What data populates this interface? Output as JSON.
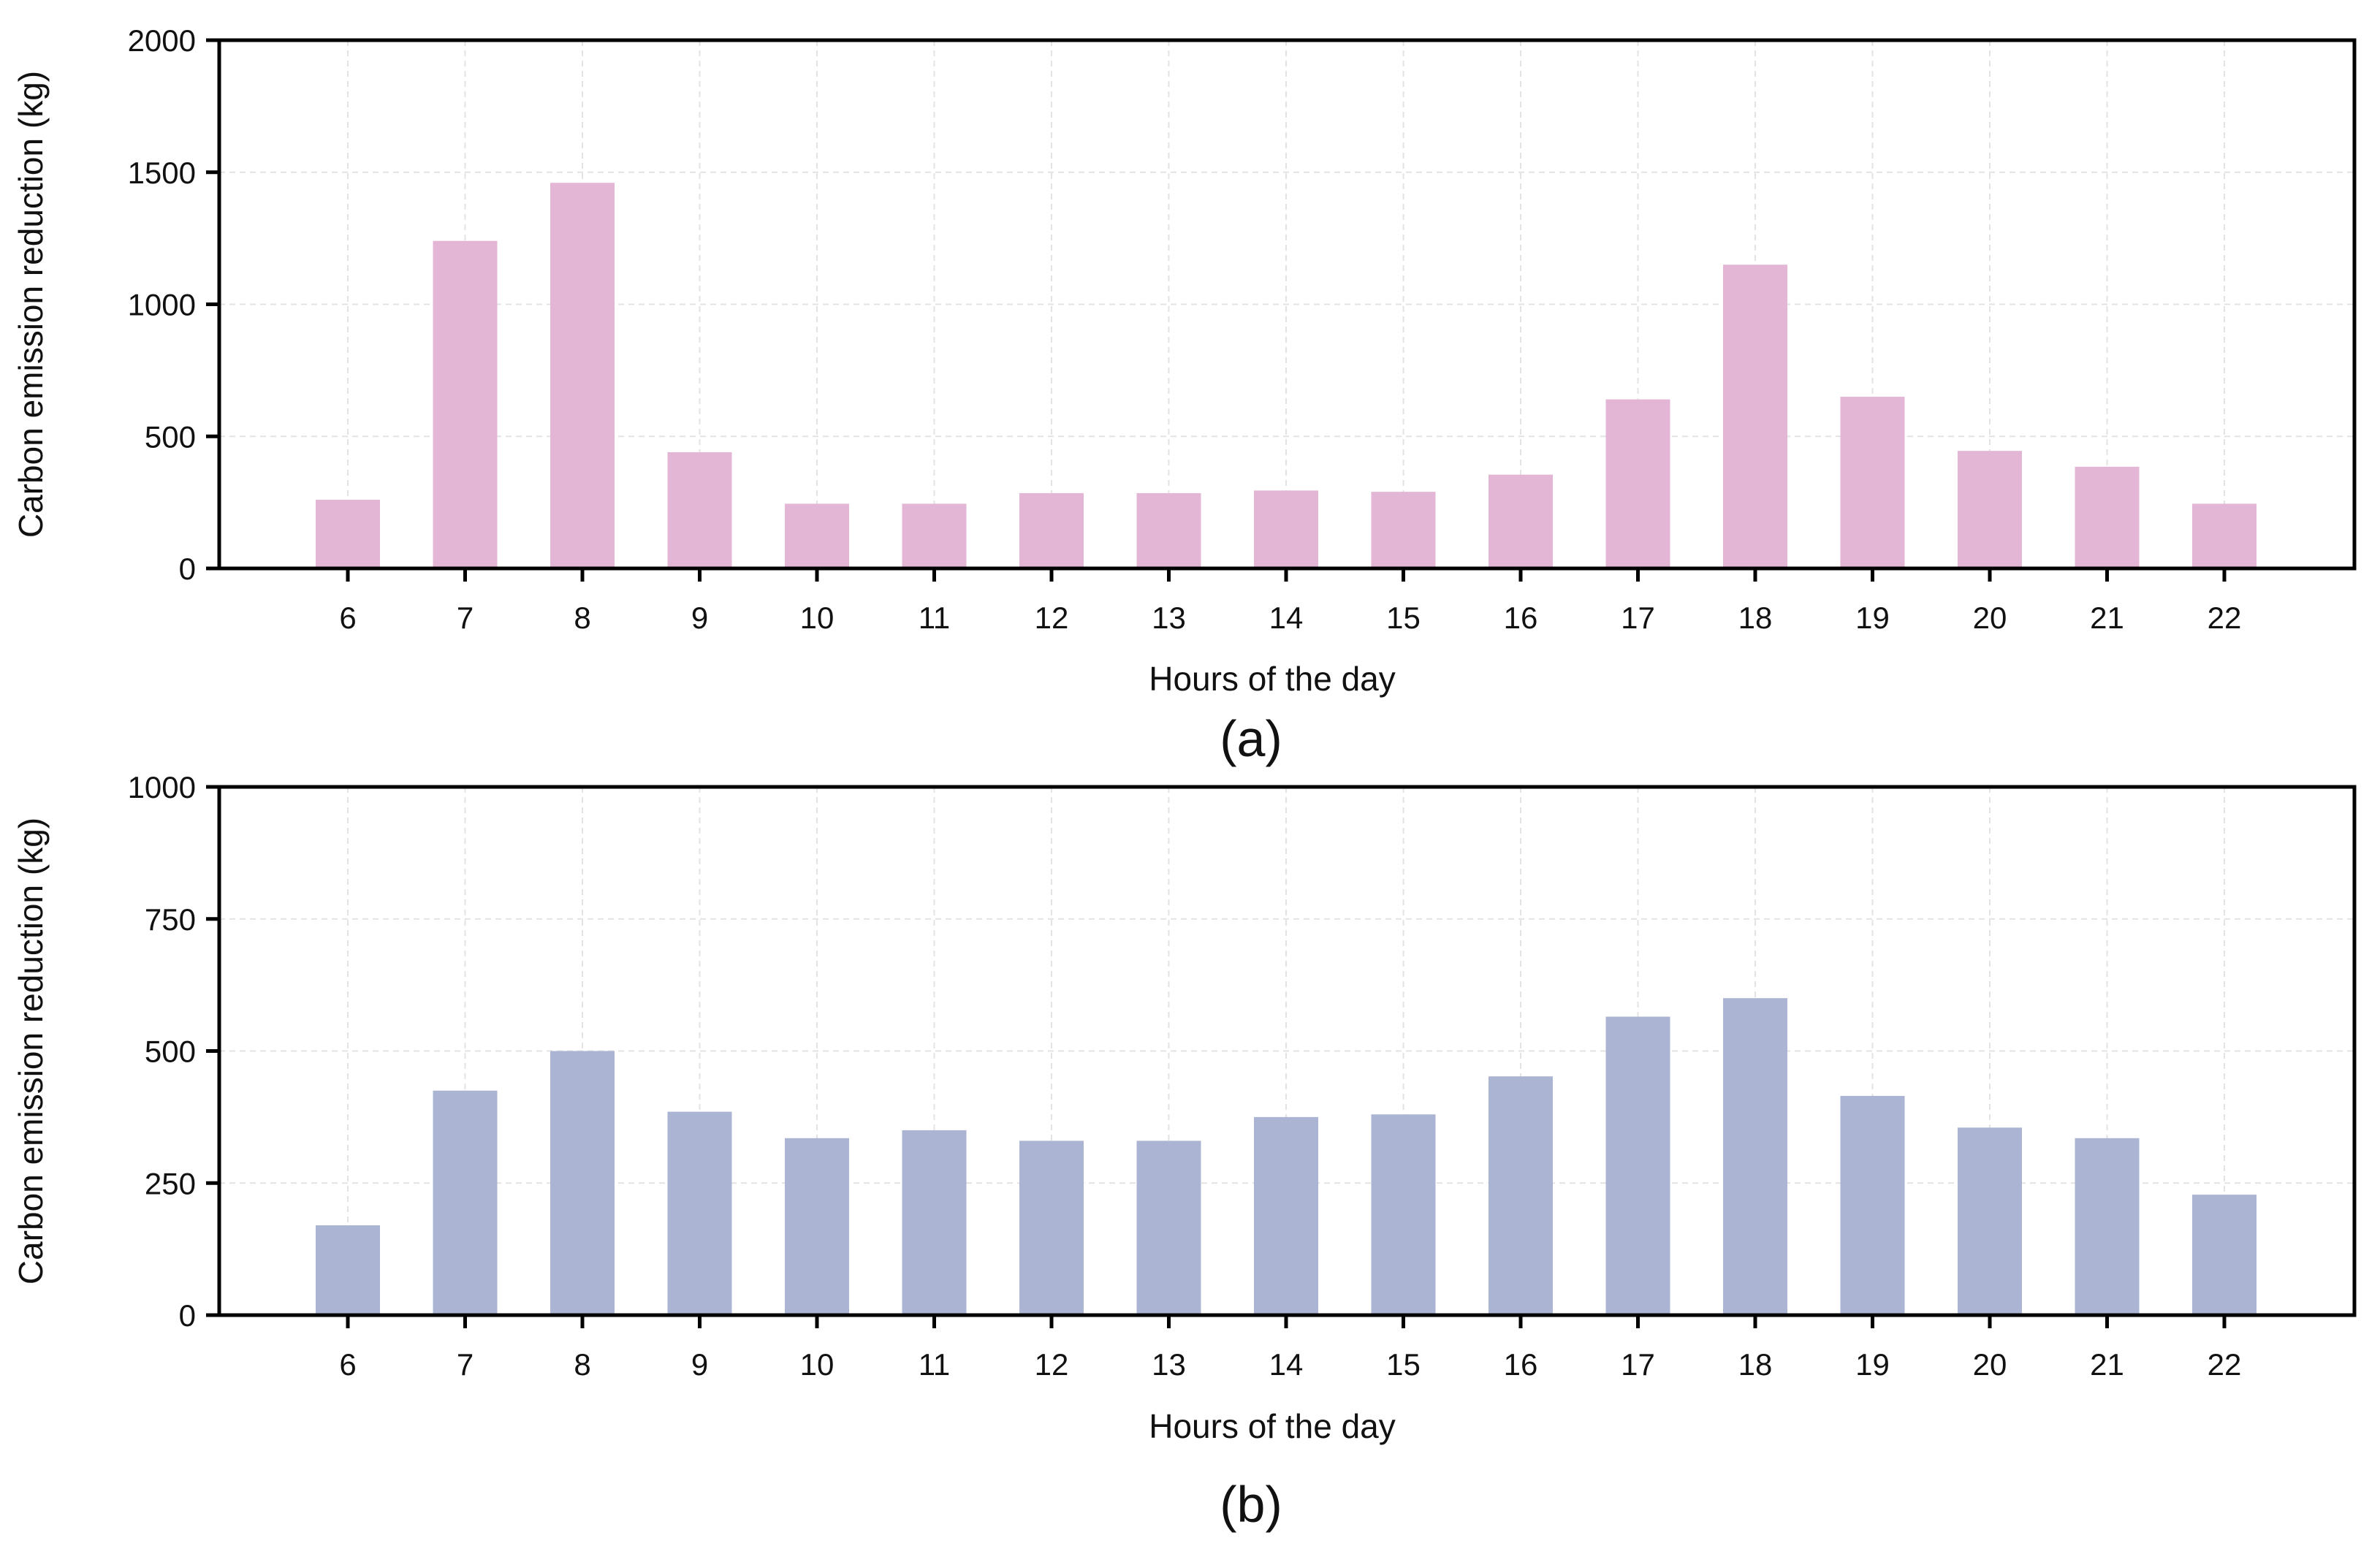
{
  "chart_data": [
    {
      "type": "bar",
      "panel_label": "(a)",
      "categories": [
        "6",
        "7",
        "8",
        "9",
        "10",
        "11",
        "12",
        "13",
        "14",
        "15",
        "16",
        "17",
        "18",
        "19",
        "20",
        "21",
        "22"
      ],
      "values": [
        260,
        1240,
        1460,
        440,
        245,
        245,
        285,
        285,
        295,
        290,
        355,
        640,
        1150,
        650,
        445,
        385,
        245
      ],
      "xlabel": "Hours of the day",
      "ylabel": "Carbon emission reduction (kg)",
      "ylim": [
        0,
        2000
      ],
      "yticks": [
        "0",
        "500",
        "1000",
        "1500",
        "2000"
      ],
      "color": "#e3b6d5",
      "grid": true
    },
    {
      "type": "bar",
      "panel_label": "(b)",
      "categories": [
        "6",
        "7",
        "8",
        "9",
        "10",
        "11",
        "12",
        "13",
        "14",
        "15",
        "16",
        "17",
        "18",
        "19",
        "20",
        "21",
        "22"
      ],
      "values": [
        170,
        425,
        500,
        385,
        335,
        350,
        330,
        330,
        375,
        380,
        452,
        565,
        600,
        415,
        355,
        335,
        228
      ],
      "xlabel": "Hours of the day",
      "ylabel": "Carbon emission reduction (kg)",
      "ylim": [
        0,
        1000
      ],
      "yticks": [
        "0",
        "250",
        "500",
        "750",
        "1000"
      ],
      "color": "#abb4d2",
      "grid": true
    }
  ]
}
